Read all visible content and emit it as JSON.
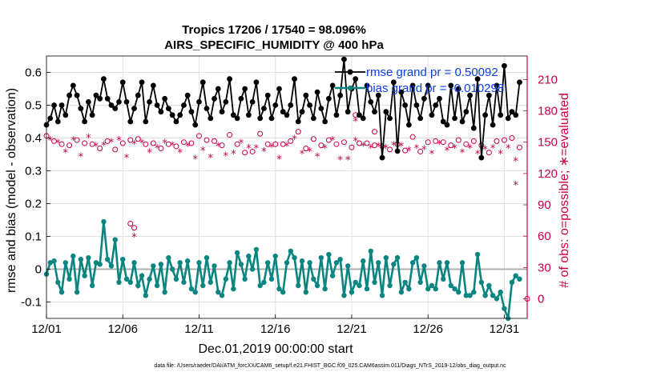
{
  "chart_data": {
    "type": "line",
    "title": "Tropics 17206 / 17540 = 98.096%",
    "subtitle": "AIRS_SPECIFIC_HUMIDITY @ 400 hPa",
    "xlabel": "Dec.01,2019 00:00:00 start",
    "ylabel_left": "rmse and bias (model - observation)",
    "ylabel_right": "# of obs: o=possible; ∗=evaluated",
    "footnote": "data file: /Users/raeder/DAI/ATM_forcXX/CAM6_setup/f.e21.FHIST_BGC.f09_025.CAM6assim.011/Diags_NTrS_2019-12/obs_diag_output.nc",
    "x_range": [
      0,
      31.5
    ],
    "ylim_left": [
      -0.15,
      0.65
    ],
    "ylim_right": [
      -18.75,
      232.5
    ],
    "xticks": [
      {
        "v": 0,
        "label": "12/01"
      },
      {
        "v": 5,
        "label": "12/06"
      },
      {
        "v": 10,
        "label": "12/11"
      },
      {
        "v": 15,
        "label": "12/16"
      },
      {
        "v": 20,
        "label": "12/21"
      },
      {
        "v": 25,
        "label": "12/26"
      },
      {
        "v": 30,
        "label": "12/31"
      }
    ],
    "yticks_left": [
      {
        "v": -0.1,
        "label": "-0.1"
      },
      {
        "v": 0,
        "label": "0"
      },
      {
        "v": 0.1,
        "label": "0.1"
      },
      {
        "v": 0.2,
        "label": "0.2"
      },
      {
        "v": 0.3,
        "label": "0.3"
      },
      {
        "v": 0.4,
        "label": "0.4"
      },
      {
        "v": 0.5,
        "label": "0.5"
      },
      {
        "v": 0.6,
        "label": "0.6"
      }
    ],
    "yticks_right": [
      {
        "v": 0,
        "label": "0"
      },
      {
        "v": 30,
        "label": "30"
      },
      {
        "v": 60,
        "label": "60"
      },
      {
        "v": 90,
        "label": "90"
      },
      {
        "v": 120,
        "label": "120"
      },
      {
        "v": 150,
        "label": "150"
      },
      {
        "v": 180,
        "label": "180"
      },
      {
        "v": 210,
        "label": "210"
      }
    ],
    "legend": [
      {
        "name": "rmse grand pr = 0.50092",
        "color": "#000000"
      },
      {
        "name": "bias grand pr = -0.010298",
        "color": "#0a8580"
      }
    ],
    "grid": true,
    "series_step": 0.25,
    "rmse": [
      0.44,
      0.46,
      0.5,
      0.45,
      0.5,
      0.47,
      0.53,
      0.56,
      0.53,
      0.49,
      0.45,
      0.51,
      0.47,
      0.53,
      0.52,
      0.58,
      0.52,
      0.5,
      0.49,
      0.51,
      0.57,
      0.51,
      0.45,
      0.49,
      0.53,
      0.57,
      0.45,
      0.51,
      0.56,
      0.5,
      0.48,
      0.52,
      0.49,
      0.47,
      0.45,
      0.47,
      0.5,
      0.53,
      0.48,
      0.44,
      0.51,
      0.57,
      0.49,
      0.46,
      0.52,
      0.55,
      0.48,
      0.51,
      0.58,
      0.47,
      0.46,
      0.52,
      0.55,
      0.47,
      0.51,
      0.57,
      0.46,
      0.49,
      0.53,
      0.46,
      0.5,
      0.55,
      0.48,
      0.47,
      0.5,
      0.58,
      0.45,
      0.48,
      0.53,
      0.5,
      0.46,
      0.54,
      0.49,
      0.45,
      0.52,
      0.56,
      0.47,
      0.53,
      0.64,
      0.48,
      0.55,
      0.58,
      0.47,
      0.46,
      0.56,
      0.51,
      0.48,
      0.53,
      0.34,
      0.48,
      0.46,
      0.57,
      0.36,
      0.54,
      0.5,
      0.44,
      0.56,
      0.5,
      0.46,
      0.52,
      0.56,
      0.47,
      0.5,
      0.52,
      0.45,
      0.44,
      0.56,
      0.46,
      0.55,
      0.45,
      0.48,
      0.53,
      0.43,
      0.58,
      0.34,
      0.47,
      0.53,
      0.44,
      0.56,
      0.47,
      0.62,
      0.46,
      0.48,
      0.47,
      0.57
    ],
    "bias": [
      -0.015,
      0.02,
      0.025,
      -0.04,
      -0.07,
      0.02,
      -0.03,
      0.04,
      -0.07,
      0.03,
      -0.02,
      0.035,
      -0.05,
      0.02,
      0.015,
      0.145,
      0.03,
      0.01,
      0.09,
      -0.04,
      0.03,
      -0.03,
      -0.04,
      0.02,
      -0.05,
      -0.02,
      -0.08,
      -0.03,
      0.01,
      -0.05,
      0.015,
      -0.07,
      0.035,
      0.0,
      -0.03,
      0.02,
      -0.04,
      0.025,
      -0.06,
      -0.07,
      0.02,
      -0.05,
      0.035,
      -0.04,
      0.01,
      -0.07,
      -0.08,
      -0.03,
      0.02,
      -0.06,
      0.05,
      0.015,
      -0.03,
      0.04,
      0.0,
      0.06,
      -0.05,
      -0.04,
      0.02,
      -0.03,
      0.04,
      -0.06,
      -0.07,
      0.02,
      0.055,
      0.035,
      -0.05,
      0.025,
      -0.07,
      0.02,
      -0.03,
      -0.05,
      0.035,
      -0.06,
      0.045,
      -0.02,
      0.02,
      0.03,
      -0.08,
      0.01,
      -0.07,
      -0.04,
      -0.05,
      0.025,
      -0.06,
      0.055,
      -0.04,
      0.02,
      -0.08,
      0.035,
      -0.05,
      0.015,
      0.035,
      -0.07,
      -0.04,
      -0.06,
      0.02,
      0.035,
      -0.04,
      0.01,
      -0.06,
      -0.05,
      -0.06,
      0.02,
      -0.03,
      0.02,
      -0.05,
      -0.06,
      -0.07,
      0.02,
      -0.08,
      -0.08,
      -0.07,
      0.045,
      -0.04,
      -0.08,
      -0.05,
      -0.08,
      -0.09,
      -0.07,
      -0.12,
      -0.15,
      -0.04,
      -0.02,
      -0.03
    ],
    "obs_possible": [
      156,
      158,
      151,
      155,
      148,
      145,
      147,
      158,
      152,
      141,
      149,
      160,
      148,
      150,
      144,
      152,
      151,
      155,
      143,
      158,
      149,
      140,
      152,
      154,
      153,
      155,
      148,
      147,
      149,
      150,
      144,
      157,
      148,
      153,
      146,
      146,
      150,
      152,
      149,
      140,
      156,
      148,
      152,
      141,
      151,
      152,
      147,
      143,
      157,
      145,
      148,
      155,
      140,
      150,
      141,
      150,
      158,
      147,
      148,
      151,
      148,
      140,
      148,
      152,
      151,
      159,
      160,
      145,
      144,
      147,
      153,
      142,
      147,
      150,
      152,
      158,
      148,
      139,
      150,
      139,
      145,
      157,
      149,
      152,
      149,
      150,
      147,
      152,
      146,
      150,
      143,
      153,
      148,
      152,
      142,
      148,
      155,
      150,
      141,
      149,
      150,
      145,
      151,
      154,
      150,
      148,
      147,
      150,
      152,
      146,
      148,
      150,
      151,
      145,
      147,
      149,
      140,
      150,
      151,
      145,
      152,
      150,
      154,
      138,
      145
    ],
    "obs_evaluated": [
      152,
      153,
      148,
      150,
      144,
      141,
      142,
      153,
      148,
      137,
      145,
      155,
      143,
      147,
      138,
      148,
      146,
      151,
      139,
      153,
      145,
      136,
      148,
      149,
      148,
      150,
      143,
      141,
      144,
      145,
      139,
      150,
      143,
      148,
      141,
      141,
      145,
      147,
      144,
      135,
      150,
      143,
      147,
      136,
      146,
      147,
      142,
      138,
      152,
      140,
      143,
      150,
      135,
      145,
      136,
      145,
      153,
      142,
      143,
      146,
      143,
      135,
      143,
      147,
      146,
      154,
      156,
      140,
      139,
      142,
      148,
      137,
      142,
      145,
      147,
      153,
      143,
      134,
      145,
      134,
      140,
      152,
      144,
      147,
      144,
      145,
      142,
      147,
      141,
      145,
      138,
      148,
      143,
      147,
      137,
      143,
      150,
      145,
      136,
      144,
      145,
      140,
      146,
      149,
      145,
      143,
      142,
      145,
      147,
      141,
      143,
      145,
      146,
      140,
      142,
      144,
      135,
      145,
      146,
      140,
      147,
      145,
      149,
      133,
      140
    ],
    "obs_outliers_possible": [
      {
        "x": 5.5,
        "count": 72
      },
      {
        "x": 5.75,
        "count": 68
      },
      {
        "x": 20.25,
        "count": 176
      },
      {
        "x": 21.5,
        "count": 160
      },
      {
        "x": 31.5,
        "count": 0
      }
    ],
    "obs_outliers_evaluated": [
      {
        "x": 5.75,
        "count": 60
      },
      {
        "x": 20.25,
        "count": 171
      },
      {
        "x": 30.75,
        "count": 110
      }
    ]
  }
}
